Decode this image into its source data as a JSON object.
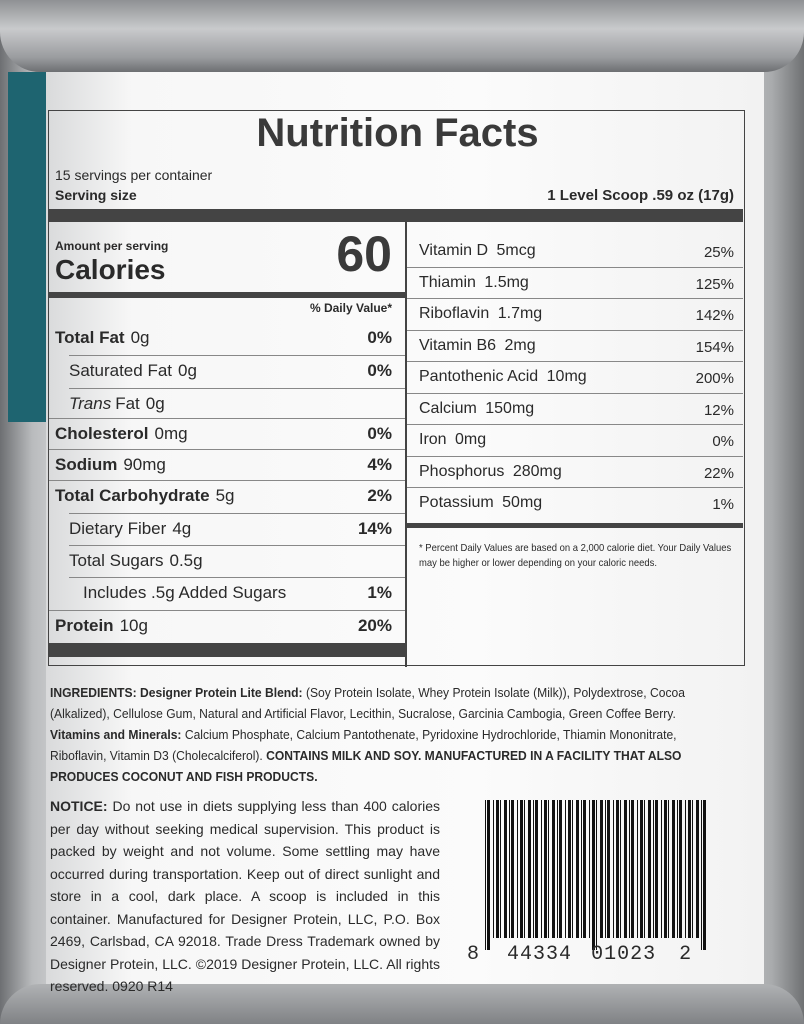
{
  "title": "Nutrition Facts",
  "servings": "15 servings per container",
  "serving_size_label": "Serving size",
  "serving_size_value": "1 Level Scoop .59 oz (17g)",
  "amount_per_serving": "Amount per serving",
  "calories_label": "Calories",
  "calories_value": "60",
  "daily_value_header": "% Daily Value*",
  "left_rows": [
    {
      "name": "Total Fat",
      "amount": "0g",
      "dv": "0%",
      "bold": true,
      "indent": 0
    },
    {
      "name": "Saturated Fat",
      "amount": "0g",
      "dv": "0%",
      "bold": false,
      "indent": 1
    },
    {
      "name": "Trans",
      "name_suffix": "Fat",
      "amount": "0g",
      "dv": "",
      "bold": false,
      "indent": 1,
      "italic": true
    },
    {
      "name": "Cholesterol",
      "amount": "0mg",
      "dv": "0%",
      "bold": true,
      "indent": 0
    },
    {
      "name": "Sodium",
      "amount": "90mg",
      "dv": "4%",
      "bold": true,
      "indent": 0
    },
    {
      "name": "Total Carbohydrate",
      "amount": "5g",
      "dv": "2%",
      "bold": true,
      "indent": 0
    },
    {
      "name": "Dietary Fiber",
      "amount": "4g",
      "dv": "14%",
      "bold": false,
      "indent": 1
    },
    {
      "name": "Total Sugars",
      "amount": "0.5g",
      "dv": "",
      "bold": false,
      "indent": 1
    },
    {
      "name": "Includes .5g Added Sugars",
      "amount": "",
      "dv": "1%",
      "bold": false,
      "indent": 2
    },
    {
      "name": "Protein",
      "amount": "10g",
      "dv": "20%",
      "bold": true,
      "indent": 0
    }
  ],
  "right_rows": [
    {
      "name": "Vitamin D",
      "amount": "5mcg",
      "dv": "25%"
    },
    {
      "name": "Thiamin",
      "amount": "1.5mg",
      "dv": "125%"
    },
    {
      "name": "Riboflavin",
      "amount": "1.7mg",
      "dv": "142%"
    },
    {
      "name": "Vitamin B6",
      "amount": "2mg",
      "dv": "154%"
    },
    {
      "name": "Pantothenic Acid",
      "amount": "10mg",
      "dv": "200%"
    },
    {
      "name": "Calcium",
      "amount": "150mg",
      "dv": "12%"
    },
    {
      "name": "Iron",
      "amount": "0mg",
      "dv": "0%"
    },
    {
      "name": "Phosphorus",
      "amount": "280mg",
      "dv": "22%"
    },
    {
      "name": "Potassium",
      "amount": "50mg",
      "dv": "1%"
    }
  ],
  "footnote": "* Percent Daily Values are based on a 2,000 calorie diet. Your Daily Values may be higher or lower depending on your caloric needs.",
  "ingredients": {
    "label": "INGREDIENTS:",
    "blend_label": "Designer Protein Lite Blend:",
    "blend": "(Soy Protein Isolate, Whey Protein Isolate (Milk)), Polydextrose, Cocoa (Alkalized), Cellulose Gum, Natural and Artificial Flavor, Lecithin, Sucralose, Garcinia Cambogia, Green Coffee Berry.",
    "vm_label": "Vitamins and Minerals:",
    "vm": "Calcium Phosphate, Calcium Pantothenate, Pyridoxine Hydrochloride, Thiamin Mononitrate, Riboflavin, Vitamin D3 (Cholecalciferol).",
    "allergen": "CONTAINS MILK AND SOY. MANUFACTURED IN A FACILITY THAT ALSO PRODUCES COCONUT AND FISH PRODUCTS."
  },
  "notice": {
    "label": "NOTICE:",
    "text": "Do not use in diets supplying less than 400 calories per day without seeking medical supervision. This product is packed by weight and not volume. Some settling may have occurred during transportation. Keep out of direct sunlight and store in a cool, dark place. A scoop is included in this container. Manufactured for Designer Protein, LLC, P.O. Box 2469, Carlsbad, CA 92018. Trade Dress Trademark owned by Designer Protein, LLC. ©2019 Designer Protein, LLC. All rights reserved. 0920 R14"
  },
  "barcode": {
    "first": "8",
    "left": "44334",
    "right": "01023",
    "last": "2"
  },
  "colors": {
    "teal": "#1e6470",
    "can": "#9a9c9f",
    "ink": "#2a2a2a"
  }
}
